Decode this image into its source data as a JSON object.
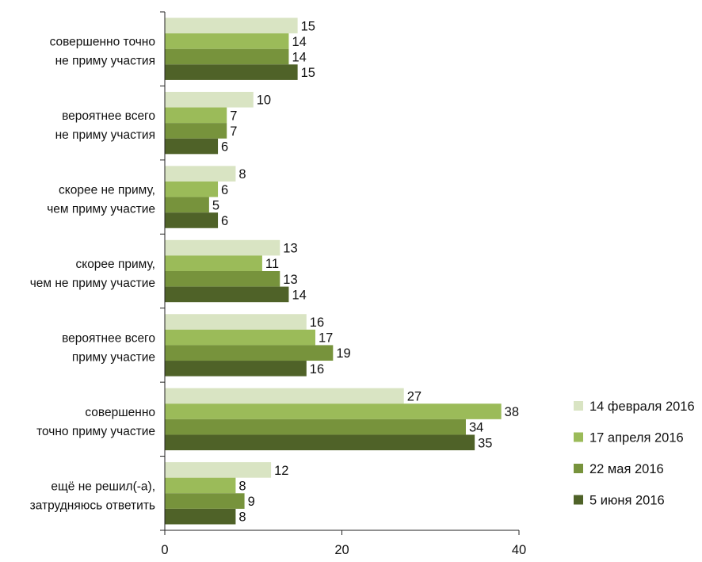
{
  "chart_data": {
    "type": "bar",
    "orientation": "horizontal",
    "categories": [
      [
        "совершенно точно",
        "не приму участия"
      ],
      [
        "вероятнее всего",
        "не приму участия"
      ],
      [
        "скорее не приму,",
        "чем приму участие"
      ],
      [
        "скорее приму,",
        "чем не приму участие"
      ],
      [
        "вероятнее всего",
        "приму участие"
      ],
      [
        "совершенно",
        "точно приму участие"
      ],
      [
        "ещё не решил(-а),",
        "затрудняюсь ответить"
      ]
    ],
    "series": [
      {
        "name": "14 февраля 2016",
        "color": "#d9e4c3",
        "values": [
          15,
          10,
          8,
          13,
          16,
          27,
          12
        ]
      },
      {
        "name": "17 апреля 2016",
        "color": "#9bbb59",
        "values": [
          14,
          7,
          6,
          11,
          17,
          38,
          8
        ]
      },
      {
        "name": "22 мая 2016",
        "color": "#77933c",
        "values": [
          14,
          7,
          5,
          13,
          19,
          34,
          9
        ]
      },
      {
        "name": "5 июня 2016",
        "color": "#4f6228",
        "values": [
          15,
          6,
          6,
          14,
          16,
          35,
          8
        ]
      }
    ],
    "x_ticks": [
      0,
      20,
      40
    ],
    "xlim": [
      0,
      40
    ],
    "legend_position": "right",
    "grid": false
  }
}
